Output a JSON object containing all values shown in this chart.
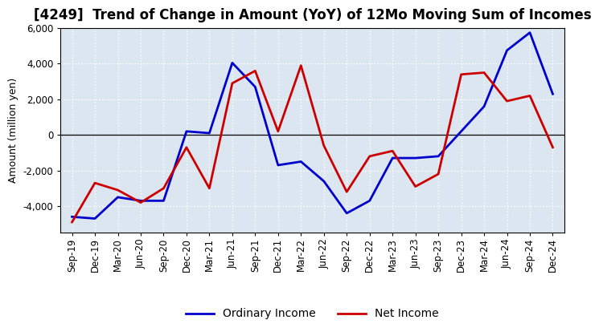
{
  "title": "[4249]  Trend of Change in Amount (YoY) of 12Mo Moving Sum of Incomes",
  "ylabel": "Amount (million yen)",
  "x_labels": [
    "Sep-19",
    "Dec-19",
    "Mar-20",
    "Jun-20",
    "Sep-20",
    "Dec-20",
    "Mar-21",
    "Jun-21",
    "Sep-21",
    "Dec-21",
    "Mar-22",
    "Jun-22",
    "Sep-22",
    "Dec-22",
    "Mar-23",
    "Jun-23",
    "Sep-23",
    "Dec-23",
    "Mar-24",
    "Jun-24",
    "Sep-24",
    "Dec-24"
  ],
  "ordinary_income": [
    -4600,
    -4700,
    -3500,
    -3700,
    -3700,
    200,
    100,
    4050,
    2700,
    -1700,
    -1500,
    -2600,
    -4400,
    -3700,
    -1300,
    -1300,
    -1200,
    200,
    1600,
    4750,
    5750,
    2300
  ],
  "net_income": [
    -4900,
    -2700,
    -3100,
    -3800,
    -3000,
    -700,
    -3000,
    2900,
    3600,
    200,
    3900,
    -600,
    -3200,
    -1200,
    -900,
    -2900,
    -2200,
    3400,
    3500,
    1900,
    2200,
    -700
  ],
  "ordinary_color": "#0000cc",
  "net_color": "#cc0000",
  "line_width": 2.0,
  "ylim": [
    -5500,
    6000
  ],
  "yticks": [
    -4000,
    -2000,
    0,
    2000,
    4000,
    6000
  ],
  "plot_bg_color": "#dce6f0",
  "fig_bg_color": "#ffffff",
  "grid_color": "#ffffff",
  "title_fontsize": 12,
  "axis_fontsize": 9,
  "tick_fontsize": 8.5,
  "legend_fontsize": 10
}
